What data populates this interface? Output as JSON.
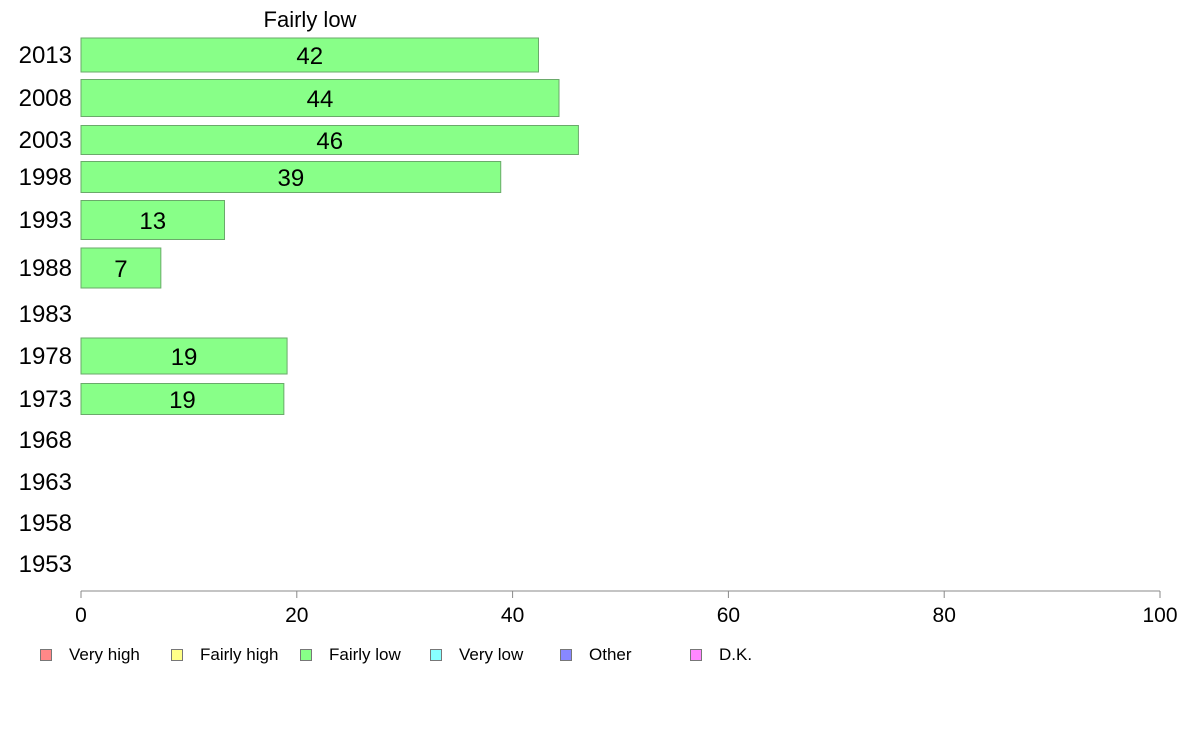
{
  "chart_data": {
    "type": "bar",
    "orientation": "horizontal",
    "title": "Fairly low",
    "categories": [
      "2013",
      "2008",
      "2003",
      "1998",
      "1993",
      "1988",
      "1983",
      "1978",
      "1973",
      "1968",
      "1963",
      "1958",
      "1953"
    ],
    "series": [
      {
        "name": "Fairly low",
        "values": [
          42,
          44,
          46,
          39,
          13,
          7,
          null,
          19,
          19,
          null,
          null,
          null,
          null
        ],
        "exact_values": [
          42.4,
          44.3,
          46.1,
          38.9,
          13.3,
          7.4,
          null,
          19.1,
          18.8,
          null,
          null,
          null,
          null
        ]
      }
    ],
    "xlim": [
      0,
      100
    ],
    "xticks": [
      0,
      20,
      40,
      60,
      80,
      100
    ],
    "bar_color": "#88ff88",
    "bar_border": "#6aaa6a",
    "legend": {
      "position": "bottom",
      "items": [
        {
          "label": "Very high",
          "color": "#ff8888"
        },
        {
          "label": "Fairly high",
          "color": "#ffff88"
        },
        {
          "label": "Fairly low",
          "color": "#88ff88"
        },
        {
          "label": "Very low",
          "color": "#88ffff"
        },
        {
          "label": "Other",
          "color": "#8888ff"
        },
        {
          "label": "D.K.",
          "color": "#ff88ff"
        }
      ]
    }
  }
}
